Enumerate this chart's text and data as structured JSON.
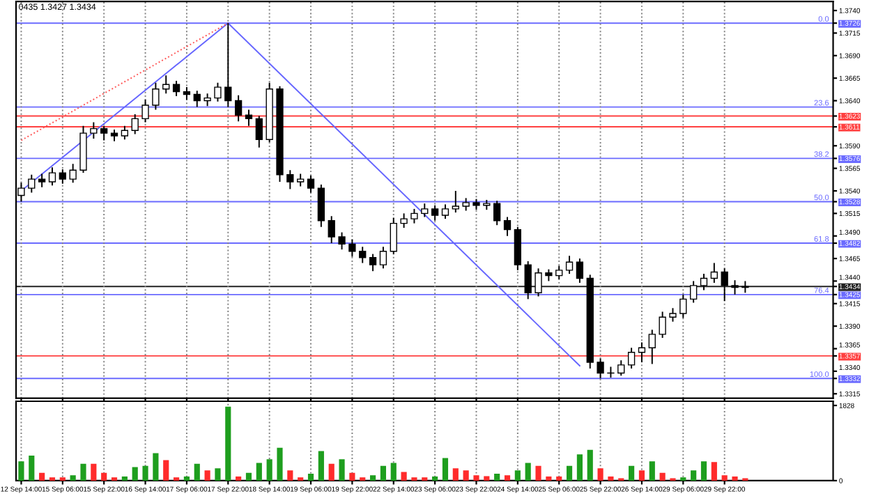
{
  "chart_data": [
    {
      "type": "candlestick",
      "color": "#000000",
      "categories": [
        null,
        null,
        null,
        null,
        null,
        null,
        null,
        null,
        null,
        null,
        null,
        null,
        null,
        null,
        null,
        null,
        null,
        null,
        null,
        null,
        null,
        null,
        null,
        null,
        null,
        null,
        null,
        null,
        null,
        null,
        null,
        null,
        null,
        null,
        null,
        null,
        null,
        null,
        null,
        null,
        null,
        null,
        null,
        null,
        null,
        null,
        null,
        null,
        null,
        null,
        null,
        null,
        null,
        null,
        null,
        null,
        null,
        null,
        null,
        null,
        null,
        null,
        null,
        null,
        null,
        null,
        null,
        null,
        null,
        null,
        null,
        null,
        null,
        null,
        null,
        null,
        null,
        null,
        null
      ],
      "ohlc": [
        [
          1.3535,
          1.3549,
          1.3528,
          1.3543
        ],
        [
          1.3543,
          1.3558,
          1.3538,
          1.3553
        ],
        [
          1.3553,
          1.3559,
          1.3544,
          1.355
        ],
        [
          1.355,
          1.3566,
          1.3546,
          1.356
        ],
        [
          1.356,
          1.3564,
          1.3548,
          1.3553
        ],
        [
          1.3553,
          1.357,
          1.3549,
          1.3563
        ],
        [
          1.3563,
          1.3612,
          1.356,
          1.3604
        ],
        [
          1.3604,
          1.3616,
          1.3598,
          1.3609
        ],
        [
          1.3609,
          1.3612,
          1.3596,
          1.3604
        ],
        [
          1.3604,
          1.3608,
          1.3595,
          1.3601
        ],
        [
          1.3601,
          1.3612,
          1.3597,
          1.3607
        ],
        [
          1.3607,
          1.3625,
          1.3603,
          1.362
        ],
        [
          1.362,
          1.3641,
          1.3616,
          1.3635
        ],
        [
          1.3635,
          1.366,
          1.363,
          1.3653
        ],
        [
          1.3653,
          1.3668,
          1.3648,
          1.3658
        ],
        [
          1.3658,
          1.3662,
          1.3645,
          1.365
        ],
        [
          1.365,
          1.3655,
          1.3641,
          1.3647
        ],
        [
          1.3647,
          1.3651,
          1.3633,
          1.364
        ],
        [
          1.364,
          1.3648,
          1.3634,
          1.3643
        ],
        [
          1.3643,
          1.366,
          1.3639,
          1.3655
        ],
        [
          1.3655,
          1.3726,
          1.3633,
          1.364
        ],
        [
          1.364,
          1.3646,
          1.3617,
          1.3624
        ],
        [
          1.3624,
          1.363,
          1.3612,
          1.362
        ],
        [
          1.362,
          1.3623,
          1.3588,
          1.3597
        ],
        [
          1.3597,
          1.366,
          1.3594,
          1.3653
        ],
        [
          1.3653,
          1.3656,
          1.355,
          1.3558
        ],
        [
          1.3558,
          1.3563,
          1.3542,
          1.355
        ],
        [
          1.355,
          1.3559,
          1.3545,
          1.3553
        ],
        [
          1.3553,
          1.3557,
          1.3538,
          1.3543
        ],
        [
          1.3543,
          1.3547,
          1.35,
          1.3507
        ],
        [
          1.3507,
          1.3512,
          1.3482,
          1.3489
        ],
        [
          1.3489,
          1.3494,
          1.3475,
          1.3481
        ],
        [
          1.3481,
          1.3486,
          1.3467,
          1.3473
        ],
        [
          1.3473,
          1.3478,
          1.346,
          1.3466
        ],
        [
          1.3466,
          1.347,
          1.3451,
          1.3458
        ],
        [
          1.3458,
          1.3478,
          1.3454,
          1.3473
        ],
        [
          1.3473,
          1.351,
          1.347,
          1.3504
        ],
        [
          1.3504,
          1.3515,
          1.3499,
          1.3509
        ],
        [
          1.3509,
          1.352,
          1.3504,
          1.3515
        ],
        [
          1.3515,
          1.3526,
          1.3511,
          1.352
        ],
        [
          1.352,
          1.3524,
          1.3507,
          1.3513
        ],
        [
          1.3513,
          1.3525,
          1.3509,
          1.352
        ],
        [
          1.352,
          1.354,
          1.3516,
          1.3523
        ],
        [
          1.3523,
          1.3532,
          1.3518,
          1.3527
        ],
        [
          1.3527,
          1.3531,
          1.3519,
          1.3524
        ],
        [
          1.3524,
          1.353,
          1.3519,
          1.3526
        ],
        [
          1.3526,
          1.3529,
          1.3502,
          1.3507
        ],
        [
          1.3507,
          1.3511,
          1.349,
          1.3497
        ],
        [
          1.3497,
          1.35,
          1.3452,
          1.3458
        ],
        [
          1.3458,
          1.3462,
          1.342,
          1.3427
        ],
        [
          1.3427,
          1.3454,
          1.3423,
          1.3449
        ],
        [
          1.3449,
          1.3453,
          1.344,
          1.3446
        ],
        [
          1.3446,
          1.3457,
          1.3442,
          1.3452
        ],
        [
          1.3452,
          1.3468,
          1.3448,
          1.3461
        ],
        [
          1.3461,
          1.3465,
          1.3438,
          1.3443
        ],
        [
          1.3443,
          1.3447,
          1.3343,
          1.335
        ],
        [
          1.335,
          1.3354,
          1.3332,
          1.3338
        ],
        [
          1.3338,
          1.3345,
          1.3333,
          1.3338
        ],
        [
          1.3338,
          1.3352,
          1.3335,
          1.3347
        ],
        [
          1.3347,
          1.3366,
          1.3343,
          1.3361
        ],
        [
          1.3361,
          1.3372,
          1.335,
          1.3366
        ],
        [
          1.3366,
          1.3386,
          1.3348,
          1.3381
        ],
        [
          1.3381,
          1.3406,
          1.3377,
          1.34
        ],
        [
          1.34,
          1.341,
          1.3395,
          1.3404
        ],
        [
          1.3404,
          1.3425,
          1.3399,
          1.342
        ],
        [
          1.342,
          1.344,
          1.3416,
          1.3435
        ],
        [
          1.3435,
          1.3448,
          1.343,
          1.3443
        ],
        [
          1.3443,
          1.346,
          1.3438,
          1.345
        ],
        [
          1.345,
          1.3454,
          1.3418,
          1.3435
        ],
        [
          1.3435,
          1.3441,
          1.3425,
          1.3433
        ],
        [
          1.3433,
          1.344,
          1.3427,
          1.3434
        ],
        null,
        null,
        null,
        null,
        null,
        null,
        null,
        null
      ],
      "series": [
        {
          "type": "line",
          "color": "#6666ff",
          "line_style": "solid",
          "values": [
            1.354,
            null,
            null,
            null,
            null,
            null,
            null,
            null,
            null,
            null,
            null,
            null,
            null,
            null,
            null,
            null,
            null,
            null,
            null,
            null,
            1.3726,
            null,
            null,
            null,
            null,
            null,
            null,
            null,
            null,
            null,
            null,
            null,
            null,
            null,
            null,
            null,
            null,
            null,
            null,
            null,
            null,
            null,
            null,
            null,
            null,
            null,
            null,
            null,
            null,
            null,
            null,
            null,
            null,
            null,
            null,
            null,
            null,
            null,
            null,
            null,
            null,
            null,
            null,
            null,
            null,
            null,
            null,
            null,
            null,
            null,
            null,
            null,
            null,
            null,
            null,
            null,
            null,
            null,
            null
          ]
        },
        {
          "type": "line",
          "color": "#6666ff",
          "line_style": "solid",
          "values": [
            null,
            null,
            null,
            null,
            null,
            null,
            null,
            null,
            null,
            null,
            null,
            null,
            null,
            null,
            null,
            null,
            null,
            null,
            null,
            null,
            1.3726,
            null,
            null,
            null,
            null,
            null,
            null,
            null,
            null,
            null,
            null,
            null,
            null,
            null,
            null,
            null,
            null,
            null,
            null,
            null,
            null,
            null,
            null,
            null,
            null,
            null,
            null,
            null,
            null,
            null,
            null,
            null,
            null,
            null,
            1.3346,
            null,
            null,
            null,
            null,
            null,
            null,
            null,
            null,
            null,
            null,
            null,
            null,
            null,
            null,
            null,
            null,
            null,
            null,
            null,
            null,
            null,
            null,
            null,
            null
          ]
        },
        {
          "type": "line",
          "color": "#ff5555",
          "line_style": "dotted",
          "values": [
            1.3596,
            null,
            null,
            null,
            null,
            null,
            null,
            null,
            null,
            null,
            null,
            null,
            null,
            null,
            null,
            null,
            null,
            null,
            null,
            null,
            1.3726,
            null,
            null,
            null,
            null,
            null,
            null,
            null,
            null,
            null,
            null,
            null,
            null,
            null,
            null,
            null,
            null,
            null,
            null,
            null,
            null,
            null,
            null,
            null,
            null,
            null,
            null,
            null,
            null,
            null,
            null,
            null,
            null,
            null,
            null,
            null,
            null,
            null,
            null,
            null,
            null,
            null,
            null,
            null,
            null,
            null,
            null,
            null,
            null,
            null,
            null,
            null,
            null,
            null,
            null,
            null,
            null,
            null,
            null
          ]
        }
      ],
      "grid": "x",
      "ylim": [
        1.331,
        1.375
      ],
      "yticks": [
        {
          "value": 1.374,
          "label": "1.3740"
        },
        {
          "value": 1.3715,
          "label": "1.3715"
        },
        {
          "value": 1.369,
          "label": "1.3690"
        },
        {
          "value": 1.3665,
          "label": "1.3665"
        },
        {
          "value": 1.364,
          "label": "1.3640"
        },
        {
          "value": 1.359,
          "label": "1.3590"
        },
        {
          "value": 1.3565,
          "label": "1.3565"
        },
        {
          "value": 1.354,
          "label": "1.3540"
        },
        {
          "value": 1.3515,
          "label": "1.3515"
        },
        {
          "value": 1.349,
          "label": "1.3490"
        },
        {
          "value": 1.3465,
          "label": "1.3465"
        },
        {
          "value": 1.344,
          "label": "1.3440"
        },
        {
          "value": 1.3415,
          "label": "1.3415"
        },
        {
          "value": 1.339,
          "label": "1.3390"
        },
        {
          "value": 1.3365,
          "label": "1.3365"
        },
        {
          "value": 1.334,
          "label": "1.3340"
        },
        {
          "value": 1.3315,
          "label": "1.3315"
        },
        {
          "value": 1.3726,
          "label": "1.3726"
        },
        {
          "value": 1.3623,
          "label": "1.3623"
        },
        {
          "value": 1.3611,
          "label": "1.3611"
        },
        {
          "value": 1.3576,
          "label": "1.3576"
        },
        {
          "value": 1.3528,
          "label": "1.3528"
        },
        {
          "value": 1.3482,
          "label": "1.3482"
        },
        {
          "value": 1.3434,
          "label": "1.3434"
        },
        {
          "value": 1.3425,
          "label": "1.3425"
        },
        {
          "value": 1.3357,
          "label": "1.3357"
        },
        {
          "value": 1.3332,
          "label": "1.3332"
        }
      ],
      "tick_labels": "y",
      "ref_lines": [
        {
          "axis": "y",
          "value": 1.3726,
          "color": "#6b6bff",
          "line_style": "solid"
        },
        {
          "axis": "y",
          "value": 1.3633,
          "color": "#6b6bff",
          "line_style": "solid"
        },
        {
          "axis": "y",
          "value": 1.3623,
          "color": "#ff4040",
          "line_style": "solid"
        },
        {
          "axis": "y",
          "value": 1.3611,
          "color": "#ff4040",
          "line_style": "solid"
        },
        {
          "axis": "y",
          "value": 1.3576,
          "color": "#6b6bff",
          "line_style": "solid"
        },
        {
          "axis": "y",
          "value": 1.3528,
          "color": "#6b6bff",
          "line_style": "solid"
        },
        {
          "axis": "y",
          "value": 1.3482,
          "color": "#6b6bff",
          "line_style": "solid"
        },
        {
          "axis": "y",
          "value": 1.3434,
          "color": "#222222",
          "line_style": "solid"
        },
        {
          "axis": "y",
          "value": 1.3425,
          "color": "#6b6bff",
          "line_style": "solid"
        },
        {
          "axis": "y",
          "value": 1.3357,
          "color": "#ff4040",
          "line_style": "solid"
        },
        {
          "axis": "y",
          "value": 1.3332,
          "color": "#6b6bff",
          "line_style": "solid"
        }
      ],
      "annotations": [
        "0435 1.3427 1.3434",
        {
          "text": "0.0",
          "y": 1.3726
        },
        {
          "text": "23.6",
          "y": 1.3633
        },
        {
          "text": "38.2",
          "y": 1.3576
        },
        {
          "text": "50.0",
          "y": 1.3528
        },
        {
          "text": "61.8",
          "y": 1.3482
        },
        {
          "text": "76.4",
          "y": 1.3425
        },
        {
          "text": "100.0",
          "y": 1.3332
        }
      ]
    },
    {
      "type": "bar",
      "categories": [
        "12 Sep 14:00",
        null,
        null,
        null,
        "15 Sep 06:00",
        null,
        null,
        null,
        "15 Sep 22:00",
        null,
        null,
        null,
        "16 Sep 14:00",
        null,
        null,
        null,
        "17 Sep 06:00",
        null,
        null,
        null,
        "17 Sep 22:00",
        null,
        null,
        null,
        "18 Sep 14:00",
        null,
        null,
        null,
        "19 Sep 06:00",
        null,
        null,
        null,
        "19 Sep 22:00",
        null,
        null,
        null,
        "22 Sep 14:00",
        null,
        null,
        null,
        "23 Sep 06:00",
        null,
        null,
        null,
        "23 Sep 22:00",
        null,
        null,
        null,
        "24 Sep 14:00",
        null,
        null,
        null,
        "25 Sep 06:00",
        null,
        null,
        null,
        "25 Sep 22:00",
        null,
        null,
        null,
        "26 Sep 14:00",
        null,
        null,
        null,
        "29 Sep 06:00",
        null,
        null,
        null,
        "29 Sep 22:00",
        null,
        null,
        null,
        null,
        null,
        null,
        null,
        null,
        null,
        null
      ],
      "values": [
        470,
        610,
        190,
        80,
        80,
        130,
        410,
        410,
        190,
        80,
        100,
        330,
        360,
        670,
        500,
        80,
        100,
        410,
        250,
        300,
        1800,
        100,
        190,
        430,
        520,
        800,
        250,
        80,
        170,
        720,
        410,
        520,
        190,
        80,
        130,
        360,
        430,
        210,
        80,
        80,
        100,
        550,
        300,
        250,
        130,
        110,
        170,
        130,
        250,
        430,
        360,
        100,
        100,
        360,
        640,
        750,
        300,
        100,
        60,
        360,
        250,
        470,
        190,
        60,
        80,
        250,
        470,
        450,
        130,
        100,
        60,
        null,
        null,
        null,
        null,
        null,
        null,
        null,
        null
      ],
      "colors": [
        "#1e9e1e",
        "#1e9e1e",
        "#ff2b2b",
        "#ff2b2b",
        "#ff2b2b",
        "#1e9e1e",
        "#1e9e1e",
        "#ff2b2b",
        "#ff2b2b",
        "#ff2b2b",
        "#1e9e1e",
        "#1e9e1e",
        "#1e9e1e",
        "#1e9e1e",
        "#ff2b2b",
        "#ff2b2b",
        "#1e9e1e",
        "#1e9e1e",
        "#ff2b2b",
        "#1e9e1e",
        "#1e9e1e",
        "#ff2b2b",
        "#1e9e1e",
        "#1e9e1e",
        "#1e9e1e",
        "#1e9e1e",
        "#ff2b2b",
        "#ff2b2b",
        "#1e9e1e",
        "#1e9e1e",
        "#ff2b2b",
        "#1e9e1e",
        "#ff2b2b",
        "#ff2b2b",
        "#1e9e1e",
        "#1e9e1e",
        "#1e9e1e",
        "#ff2b2b",
        "#ff2b2b",
        "#ff2b2b",
        "#1e9e1e",
        "#1e9e1e",
        "#ff2b2b",
        "#ff2b2b",
        "#ff2b2b",
        "#ff2b2b",
        "#1e9e1e",
        "#ff2b2b",
        "#1e9e1e",
        "#1e9e1e",
        "#ff2b2b",
        "#ff2b2b",
        "#ff2b2b",
        "#1e9e1e",
        "#1e9e1e",
        "#1e9e1e",
        "#ff2b2b",
        "#ff2b2b",
        "#ff2b2b",
        "#1e9e1e",
        "#ff2b2b",
        "#1e9e1e",
        "#ff2b2b",
        "#ff2b2b",
        "#1e9e1e",
        "#1e9e1e",
        "#1e9e1e",
        "#ff2b2b",
        "#ff2b2b",
        "#ff2b2b",
        "#ff2b2b",
        null,
        null,
        null,
        null,
        null,
        null,
        null,
        null
      ],
      "ylim": [
        0,
        1930
      ],
      "yticks": [
        0,
        1828
      ],
      "grid": "x"
    }
  ]
}
